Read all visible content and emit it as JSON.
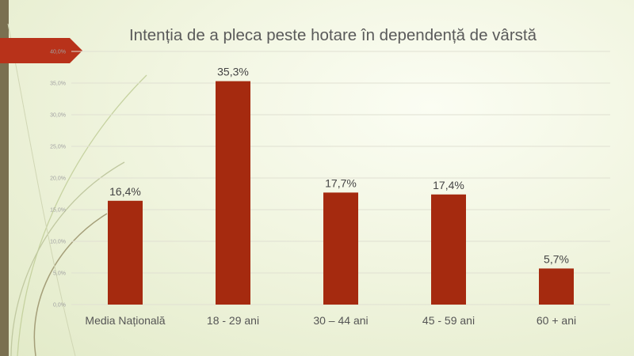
{
  "chart_data": {
    "type": "bar",
    "title": "Intenția de a pleca peste hotare în dependență de vârstă",
    "categories": [
      "Media Națională",
      "18 - 29 ani",
      "30 – 44 ani",
      "45 - 59 ani",
      "60 + ani"
    ],
    "values": [
      16.4,
      35.3,
      17.7,
      17.4,
      5.7
    ],
    "data_labels": [
      "16,4%",
      "35,3%",
      "17,7%",
      "17,4%",
      "5,7%"
    ],
    "y_ticks": [
      0,
      5,
      10,
      15,
      20,
      25,
      30,
      35,
      40
    ],
    "y_tick_labels": [
      "0,0%",
      "5,0%",
      "10,0%",
      "15,0%",
      "20,0%",
      "25,0%",
      "30,0%",
      "35,0%",
      "40,0%"
    ],
    "ylim": [
      0,
      40
    ],
    "xlabel": "",
    "ylabel": "",
    "grid": true,
    "legend": "none",
    "bar_color": "#a52a0f",
    "accent_color": "#b8321a"
  }
}
